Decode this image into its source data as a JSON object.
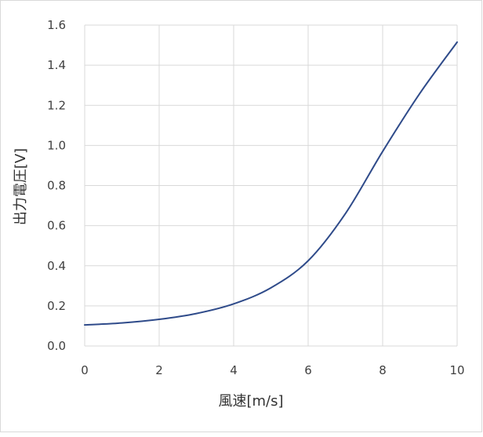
{
  "chart_data": {
    "type": "line",
    "title": "",
    "xlabel": "風速[m/s]",
    "ylabel": "出力電圧[V]",
    "xlim": [
      0,
      10
    ],
    "ylim": [
      0,
      1.6
    ],
    "x_ticks": [
      0,
      2,
      4,
      6,
      8,
      10
    ],
    "y_ticks": [
      0.0,
      0.2,
      0.4,
      0.6,
      0.8,
      1.0,
      1.2,
      1.4,
      1.6
    ],
    "x_tick_labels": [
      "0",
      "2",
      "4",
      "6",
      "8",
      "10"
    ],
    "y_tick_labels": [
      "0.0",
      "0.2",
      "0.4",
      "0.6",
      "0.8",
      "1.0",
      "1.2",
      "1.4",
      "1.6"
    ],
    "grid": true,
    "legend": "none",
    "series": [
      {
        "color": "#2F4B8A",
        "x": [
          0,
          1,
          2,
          3,
          4,
          5,
          6,
          7,
          8,
          9,
          10
        ],
        "y": [
          0.105,
          0.115,
          0.133,
          0.162,
          0.21,
          0.29,
          0.425,
          0.66,
          0.97,
          1.26,
          1.515
        ]
      }
    ]
  }
}
